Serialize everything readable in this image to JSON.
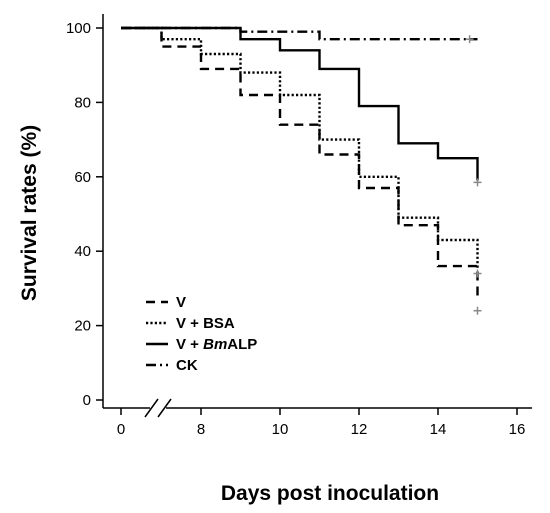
{
  "chart_data": {
    "type": "line",
    "title": "",
    "xlabel": "Days post inoculation",
    "ylabel": "Survival rates (%)",
    "xlim": [
      -1,
      16.5
    ],
    "ylim": [
      -5,
      104
    ],
    "x_axis_break_after": 0,
    "x_ticks": [
      0,
      8,
      10,
      12,
      14,
      16
    ],
    "x_tick_labels": [
      "0",
      "8",
      "10",
      "12",
      "14",
      "16"
    ],
    "y_ticks": [
      0,
      20,
      40,
      60,
      80,
      100
    ],
    "y_tick_labels": [
      "0",
      "20",
      "40",
      "60",
      "80",
      "100"
    ],
    "grid": false,
    "legend_position": "bottom-left",
    "series": [
      {
        "name": "V",
        "style": "dashed",
        "x": [
          0,
          7,
          7,
          8,
          8,
          9,
          9,
          10,
          10,
          11,
          11,
          12,
          12,
          13,
          13,
          14,
          14,
          15,
          15
        ],
        "y": [
          100,
          100,
          95,
          95,
          89,
          89,
          82,
          82,
          74,
          74,
          66,
          66,
          57,
          57,
          47,
          47,
          36,
          36,
          27
        ],
        "censored": [
          {
            "x": 15,
            "y": 24
          }
        ]
      },
      {
        "name": "V + BSA",
        "style": "dotted",
        "x": [
          0,
          7,
          7,
          8,
          8,
          9,
          9,
          10,
          10,
          11,
          11,
          12,
          12,
          13,
          13,
          14,
          14,
          15,
          15
        ],
        "y": [
          100,
          100,
          97,
          97,
          93,
          93,
          88,
          88,
          82,
          82,
          70,
          70,
          60,
          60,
          49,
          49,
          43,
          43,
          35
        ],
        "censored": [
          {
            "x": 15,
            "y": 34
          }
        ]
      },
      {
        "name": "V + BmALP",
        "name_parts": [
          {
            "text": "V + ",
            "italic": false
          },
          {
            "text": "Bm",
            "italic": true
          },
          {
            "text": "ALP",
            "italic": false
          }
        ],
        "style": "solid",
        "x": [
          0,
          9,
          9,
          10,
          10,
          11,
          11,
          12,
          12,
          13,
          13,
          14,
          14,
          15,
          15
        ],
        "y": [
          100,
          100,
          97,
          97,
          94,
          94,
          89,
          89,
          79,
          79,
          69,
          69,
          65,
          65,
          59
        ],
        "censored": [
          {
            "x": 15,
            "y": 58.5
          }
        ]
      },
      {
        "name": "CK",
        "style": "dashdot",
        "x": [
          0,
          7,
          7,
          9,
          9,
          11,
          11,
          15
        ],
        "y": [
          100,
          100,
          100,
          100,
          99,
          99,
          97,
          97
        ],
        "censored": [
          {
            "x": 14.8,
            "y": 97
          }
        ]
      }
    ]
  }
}
